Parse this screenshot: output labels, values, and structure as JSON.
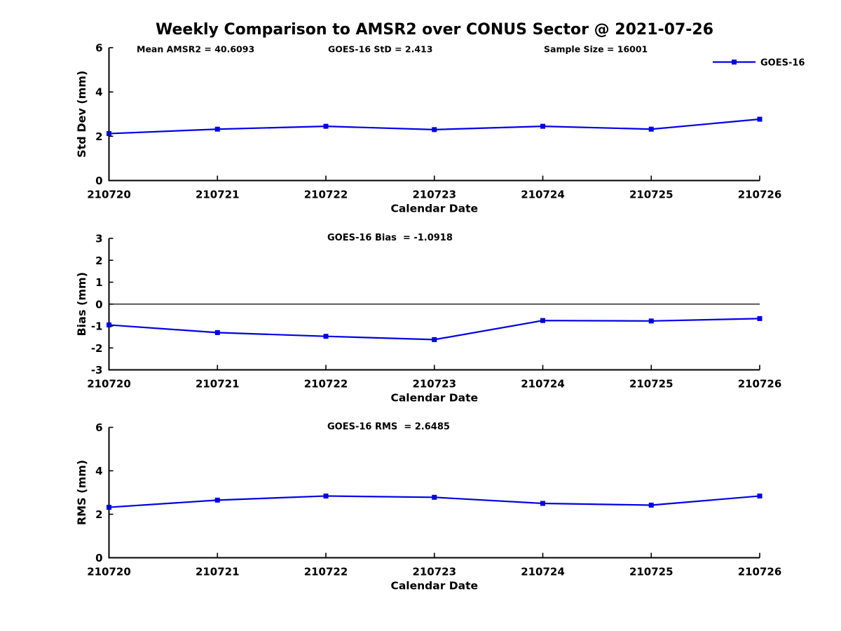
{
  "figure_title": "Weekly Comparison to AMSR2 over CONUS Sector @ 2021-07-26",
  "colors": {
    "series": "#0000e6",
    "axis": "#000000",
    "zero_line": "#000000",
    "text": "#000000",
    "background": "#ffffff"
  },
  "chart_data": [
    {
      "type": "line",
      "name": "std-dev",
      "ylabel": "Std Dev (mm)",
      "xlabel": "Calendar Date",
      "annotations": [
        "Mean AMSR2 = 40.6093",
        "GOES-16 StD = 2.413",
        "Sample Size = 16001"
      ],
      "legend": {
        "label": "GOES-16",
        "position": "top-right"
      },
      "categories": [
        "210720",
        "210721",
        "210722",
        "210723",
        "210724",
        "210725",
        "210726"
      ],
      "series": [
        {
          "name": "GOES-16",
          "values": [
            2.12,
            2.32,
            2.45,
            2.3,
            2.45,
            2.32,
            2.77
          ]
        }
      ],
      "ylim": [
        0,
        6
      ],
      "yticks": [
        0,
        2,
        4,
        6
      ],
      "grid": false,
      "marker": "square",
      "zero_line": false
    },
    {
      "type": "line",
      "name": "bias",
      "title": "GOES-16 Bias  = -1.0918",
      "ylabel": "Bias (mm)",
      "xlabel": "Calendar Date",
      "categories": [
        "210720",
        "210721",
        "210722",
        "210723",
        "210724",
        "210725",
        "210726"
      ],
      "series": [
        {
          "name": "GOES-16",
          "values": [
            -0.95,
            -1.3,
            -1.47,
            -1.62,
            -0.75,
            -0.77,
            -0.66
          ]
        }
      ],
      "ylim": [
        -3,
        3
      ],
      "yticks": [
        -3,
        -2,
        -1,
        0,
        1,
        2,
        3
      ],
      "grid": false,
      "marker": "square",
      "zero_line": true
    },
    {
      "type": "line",
      "name": "rms",
      "title": "GOES-16 RMS  = 2.6485",
      "ylabel": "RMS (mm)",
      "xlabel": "Calendar Date",
      "categories": [
        "210720",
        "210721",
        "210722",
        "210723",
        "210724",
        "210725",
        "210726"
      ],
      "series": [
        {
          "name": "GOES-16",
          "values": [
            2.32,
            2.65,
            2.84,
            2.78,
            2.5,
            2.42,
            2.84
          ]
        }
      ],
      "ylim": [
        0,
        6
      ],
      "yticks": [
        0,
        2,
        4,
        6
      ],
      "grid": false,
      "marker": "square",
      "zero_line": false
    }
  ]
}
